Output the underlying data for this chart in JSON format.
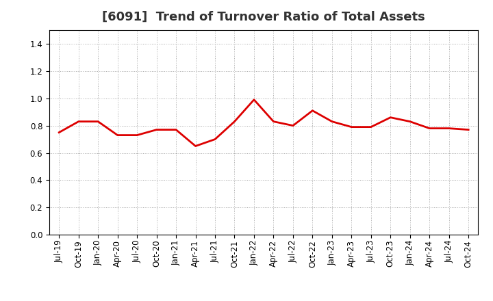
{
  "title": "[6091]  Trend of Turnover Ratio of Total Assets",
  "labels": [
    "Jul-19",
    "Oct-19",
    "Jan-20",
    "Apr-20",
    "Jul-20",
    "Oct-20",
    "Jan-21",
    "Apr-21",
    "Jul-21",
    "Oct-21",
    "Jan-22",
    "Apr-22",
    "Jul-22",
    "Oct-22",
    "Jan-23",
    "Apr-23",
    "Jul-23",
    "Oct-23",
    "Jan-24",
    "Apr-24",
    "Jul-24",
    "Oct-24"
  ],
  "values": [
    0.75,
    0.83,
    0.83,
    0.73,
    0.73,
    0.77,
    0.77,
    0.65,
    0.7,
    0.83,
    0.99,
    0.83,
    0.8,
    0.91,
    0.83,
    0.79,
    0.79,
    0.86,
    0.83,
    0.78,
    0.78,
    0.77
  ],
  "line_color": "#dd0000",
  "line_width": 2.0,
  "ylim": [
    0.0,
    1.5
  ],
  "yticks": [
    0.0,
    0.2,
    0.4,
    0.6,
    0.8,
    1.0,
    1.2,
    1.4
  ],
  "title_fontsize": 13,
  "tick_fontsize": 8.5,
  "title_color": "#333333",
  "background_color": "#ffffff",
  "grid_color": "#aaaaaa",
  "plot_bg_color": "#ffffff"
}
